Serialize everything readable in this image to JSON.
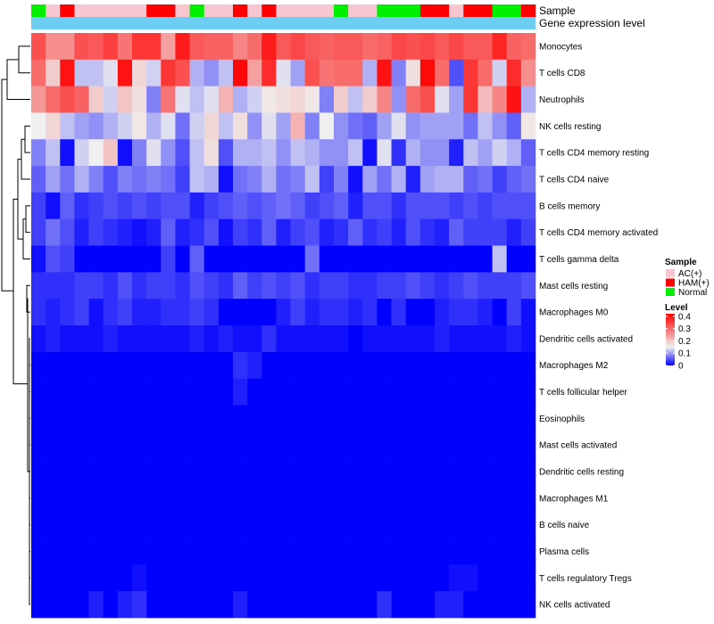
{
  "chart_data": {
    "type": "heatmap",
    "title": "",
    "annotation_labels": {
      "sample": "Sample",
      "gene_expression": "Gene expression level"
    },
    "gene_expression_color": "#6ecdf2",
    "sample_annotation": [
      "N",
      "A",
      "H",
      "A",
      "A",
      "A",
      "A",
      "A",
      "H",
      "H",
      "A",
      "N",
      "A",
      "A",
      "H",
      "A",
      "H",
      "A",
      "A",
      "A",
      "A",
      "N",
      "A",
      "A",
      "N",
      "N",
      "N",
      "H",
      "H",
      "A",
      "H",
      "H",
      "N",
      "N",
      "H"
    ],
    "sample_legend": {
      "title": "Sample",
      "entries": [
        {
          "key": "A",
          "label": "AC(+)",
          "color": "#f7c6d0"
        },
        {
          "key": "H",
          "label": "HAM(+)",
          "color": "#ff0000"
        },
        {
          "key": "N",
          "label": "Normal",
          "color": "#00ee00"
        }
      ]
    },
    "level_legend": {
      "title": "Level",
      "ticks": [
        "0.4",
        "0.3",
        "0.2",
        "0.1",
        "0"
      ],
      "tick_values": [
        0.4,
        0.3,
        0.2,
        0.1,
        0
      ],
      "min": 0,
      "mid": 0.15,
      "max": 0.42,
      "colors": {
        "low": "#0000ff",
        "mid": "#f0f0f0",
        "high": "#ff0000"
      }
    },
    "rows": [
      "Monocytes",
      "T cells CD8",
      "Neutrophils",
      "NK cells resting",
      "T cells CD4 memory resting",
      "T cells CD4 naive",
      "B cells memory",
      "T cells CD4 memory activated",
      "T cells gamma delta",
      "Mast cells resting",
      "Macrophages M0",
      "Dendritic cells activated",
      "Macrophages M2",
      "T cells follicular helper",
      "Eosinophils",
      "Mast cells activated",
      "Dendritic cells resting",
      "Macrophages M1",
      "B cells naive",
      "Plasma cells",
      "T cells regulatory  Tregs",
      "NK cells activated"
    ],
    "values": [
      [
        0.33,
        0.26,
        0.26,
        0.33,
        0.32,
        0.35,
        0.29,
        0.36,
        0.36,
        0.24,
        0.39,
        0.32,
        0.31,
        0.31,
        0.27,
        0.3,
        0.39,
        0.32,
        0.34,
        0.32,
        0.31,
        0.32,
        0.32,
        0.3,
        0.31,
        0.34,
        0.33,
        0.34,
        0.32,
        0.34,
        0.32,
        0.32,
        0.38,
        0.31,
        0.3
      ],
      [
        0.3,
        0.19,
        0.4,
        0.12,
        0.12,
        0.14,
        0.4,
        0.18,
        0.13,
        0.36,
        0.33,
        0.11,
        0.09,
        0.12,
        0.41,
        0.24,
        0.37,
        0.14,
        0.1,
        0.33,
        0.29,
        0.3,
        0.3,
        0.11,
        0.4,
        0.08,
        0.17,
        0.41,
        0.3,
        0.05,
        0.36,
        0.3,
        0.13,
        0.37,
        0.26
      ],
      [
        0.25,
        0.3,
        0.33,
        0.31,
        0.19,
        0.13,
        0.2,
        0.17,
        0.08,
        0.29,
        0.14,
        0.12,
        0.14,
        0.22,
        0.11,
        0.13,
        0.16,
        0.17,
        0.18,
        0.16,
        0.08,
        0.19,
        0.12,
        0.19,
        0.27,
        0.09,
        0.3,
        0.33,
        0.14,
        0.1,
        0.36,
        0.21,
        0.27,
        0.4,
        0.11
      ],
      [
        0.15,
        0.18,
        0.12,
        0.1,
        0.09,
        0.11,
        0.13,
        0.16,
        0.11,
        0.14,
        0.07,
        0.13,
        0.18,
        0.12,
        0.17,
        0.09,
        0.14,
        0.1,
        0.22,
        0.08,
        0.15,
        0.09,
        0.07,
        0.06,
        0.1,
        0.14,
        0.09,
        0.1,
        0.1,
        0.1,
        0.07,
        0.12,
        0.09,
        0.06,
        0.16
      ],
      [
        0.08,
        0.12,
        0.01,
        0.13,
        0.15,
        0.2,
        0.01,
        0.08,
        0.14,
        0.09,
        0.05,
        0.12,
        0.17,
        0.05,
        0.11,
        0.11,
        0.12,
        0.09,
        0.12,
        0.11,
        0.09,
        0.09,
        0.12,
        0.01,
        0.14,
        0.03,
        0.11,
        0.09,
        0.09,
        0.02,
        0.12,
        0.1,
        0.13,
        0.11,
        0.06
      ],
      [
        0.06,
        0.1,
        0.07,
        0.11,
        0.08,
        0.05,
        0.08,
        0.07,
        0.08,
        0.07,
        0.04,
        0.12,
        0.11,
        0.01,
        0.07,
        0.08,
        0.11,
        0.07,
        0.08,
        0.12,
        0.04,
        0.08,
        0.01,
        0.1,
        0.07,
        0.11,
        0.02,
        0.1,
        0.11,
        0.11,
        0.06,
        0.07,
        0.04,
        0.06,
        0.07
      ],
      [
        0.04,
        0.01,
        0.06,
        0.03,
        0.04,
        0.05,
        0.04,
        0.05,
        0.04,
        0.05,
        0.05,
        0.02,
        0.04,
        0.05,
        0.06,
        0.05,
        0.06,
        0.07,
        0.06,
        0.04,
        0.05,
        0.06,
        0.02,
        0.05,
        0.05,
        0.03,
        0.05,
        0.05,
        0.05,
        0.04,
        0.05,
        0.04,
        0.05,
        0.05,
        0.05
      ],
      [
        0.04,
        0.07,
        0.05,
        0.02,
        0.04,
        0.03,
        0.02,
        0.01,
        0.02,
        0.06,
        0.02,
        0.03,
        0.05,
        0.01,
        0.04,
        0.03,
        0.06,
        0.02,
        0.04,
        0.05,
        0.02,
        0.03,
        0.06,
        0.03,
        0.04,
        0.02,
        0.05,
        0.03,
        0.02,
        0.06,
        0.04,
        0.04,
        0.04,
        0.02,
        0.04
      ],
      [
        0.01,
        0.05,
        0.04,
        0.0,
        0.0,
        0.0,
        0.0,
        0.0,
        0.0,
        0.04,
        0.0,
        0.06,
        0.0,
        0.0,
        0.0,
        0.0,
        0.0,
        0.0,
        0.0,
        0.07,
        0.0,
        0.0,
        0.0,
        0.0,
        0.0,
        0.0,
        0.0,
        0.0,
        0.0,
        0.0,
        0.0,
        0.0,
        0.12,
        0.0,
        0.0
      ],
      [
        0.03,
        0.03,
        0.03,
        0.04,
        0.04,
        0.03,
        0.05,
        0.03,
        0.04,
        0.04,
        0.03,
        0.05,
        0.04,
        0.03,
        0.06,
        0.04,
        0.05,
        0.04,
        0.05,
        0.03,
        0.04,
        0.04,
        0.03,
        0.03,
        0.04,
        0.04,
        0.05,
        0.04,
        0.03,
        0.04,
        0.05,
        0.04,
        0.04,
        0.04,
        0.05
      ],
      [
        0.03,
        0.02,
        0.03,
        0.04,
        0.01,
        0.03,
        0.04,
        0.02,
        0.02,
        0.03,
        0.03,
        0.04,
        0.03,
        0.0,
        0.0,
        0.0,
        0.0,
        0.02,
        0.04,
        0.02,
        0.03,
        0.03,
        0.02,
        0.03,
        0.0,
        0.03,
        0.0,
        0.0,
        0.02,
        0.03,
        0.03,
        0.02,
        0.0,
        0.04,
        0.01
      ],
      [
        0.01,
        0.02,
        0.01,
        0.01,
        0.01,
        0.02,
        0.01,
        0.01,
        0.01,
        0.01,
        0.01,
        0.02,
        0.01,
        0.02,
        0.01,
        0.01,
        0.03,
        0.01,
        0.01,
        0.01,
        0.01,
        0.01,
        0.0,
        0.01,
        0.01,
        0.01,
        0.01,
        0.01,
        0.02,
        0.01,
        0.01,
        0.01,
        0.01,
        0.02,
        0.01
      ],
      [
        0.0,
        0.0,
        0.0,
        0.0,
        0.0,
        0.0,
        0.0,
        0.0,
        0.0,
        0.0,
        0.0,
        0.0,
        0.0,
        0.0,
        0.03,
        0.02,
        0.0,
        0.0,
        0.0,
        0.0,
        0.0,
        0.0,
        0.0,
        0.0,
        0.0,
        0.0,
        0.0,
        0.0,
        0.0,
        0.0,
        0.0,
        0.0,
        0.0,
        0.0,
        0.0
      ],
      [
        0.0,
        0.0,
        0.0,
        0.0,
        0.0,
        0.0,
        0.0,
        0.0,
        0.0,
        0.0,
        0.0,
        0.0,
        0.0,
        0.0,
        0.02,
        0.0,
        0.0,
        0.0,
        0.0,
        0.0,
        0.0,
        0.0,
        0.0,
        0.0,
        0.0,
        0.0,
        0.0,
        0.0,
        0.0,
        0.0,
        0.0,
        0.0,
        0.0,
        0.0,
        0.0
      ],
      [
        0,
        0,
        0,
        0,
        0,
        0,
        0,
        0,
        0,
        0,
        0,
        0,
        0,
        0,
        0,
        0,
        0,
        0,
        0,
        0,
        0,
        0,
        0,
        0,
        0,
        0,
        0,
        0,
        0,
        0,
        0,
        0,
        0,
        0,
        0
      ],
      [
        0,
        0,
        0,
        0,
        0,
        0,
        0,
        0,
        0,
        0,
        0,
        0,
        0,
        0,
        0,
        0,
        0,
        0,
        0,
        0,
        0,
        0,
        0,
        0,
        0,
        0,
        0,
        0,
        0,
        0,
        0,
        0,
        0,
        0,
        0
      ],
      [
        0,
        0,
        0,
        0,
        0,
        0,
        0,
        0,
        0,
        0,
        0,
        0,
        0,
        0,
        0,
        0,
        0,
        0,
        0,
        0,
        0,
        0,
        0,
        0,
        0,
        0,
        0,
        0,
        0,
        0,
        0,
        0,
        0,
        0,
        0
      ],
      [
        0,
        0,
        0,
        0,
        0,
        0,
        0,
        0,
        0,
        0,
        0,
        0,
        0,
        0,
        0,
        0,
        0,
        0,
        0,
        0,
        0,
        0,
        0,
        0,
        0,
        0,
        0,
        0,
        0,
        0,
        0,
        0,
        0,
        0,
        0
      ],
      [
        0,
        0,
        0,
        0,
        0,
        0,
        0,
        0,
        0,
        0,
        0,
        0,
        0,
        0,
        0,
        0,
        0,
        0,
        0,
        0,
        0,
        0,
        0,
        0,
        0,
        0,
        0,
        0,
        0,
        0,
        0,
        0,
        0,
        0,
        0
      ],
      [
        0,
        0,
        0,
        0,
        0,
        0,
        0,
        0,
        0,
        0,
        0,
        0,
        0,
        0,
        0,
        0,
        0,
        0,
        0,
        0,
        0,
        0,
        0,
        0,
        0,
        0,
        0,
        0,
        0,
        0,
        0,
        0,
        0,
        0,
        0
      ],
      [
        0.0,
        0.0,
        0.0,
        0.0,
        0.0,
        0.0,
        0.0,
        0.01,
        0.0,
        0.0,
        0.0,
        0.0,
        0.0,
        0.0,
        0.0,
        0.0,
        0.0,
        0.0,
        0.0,
        0.0,
        0.0,
        0.0,
        0.0,
        0.0,
        0.0,
        0.0,
        0.0,
        0.0,
        0.0,
        0.01,
        0.01,
        0.0,
        0.0,
        0.0,
        0.0
      ],
      [
        0.0,
        0.0,
        0.0,
        0.0,
        0.02,
        0.0,
        0.02,
        0.03,
        0.0,
        0.0,
        0.0,
        0.0,
        0.0,
        0.0,
        0.02,
        0.0,
        0.0,
        0.0,
        0.0,
        0.0,
        0.0,
        0.0,
        0.0,
        0.0,
        0.03,
        0.0,
        0.0,
        0.0,
        0.02,
        0.02,
        0.0,
        0.0,
        0.0,
        0.0,
        0.0
      ]
    ]
  }
}
